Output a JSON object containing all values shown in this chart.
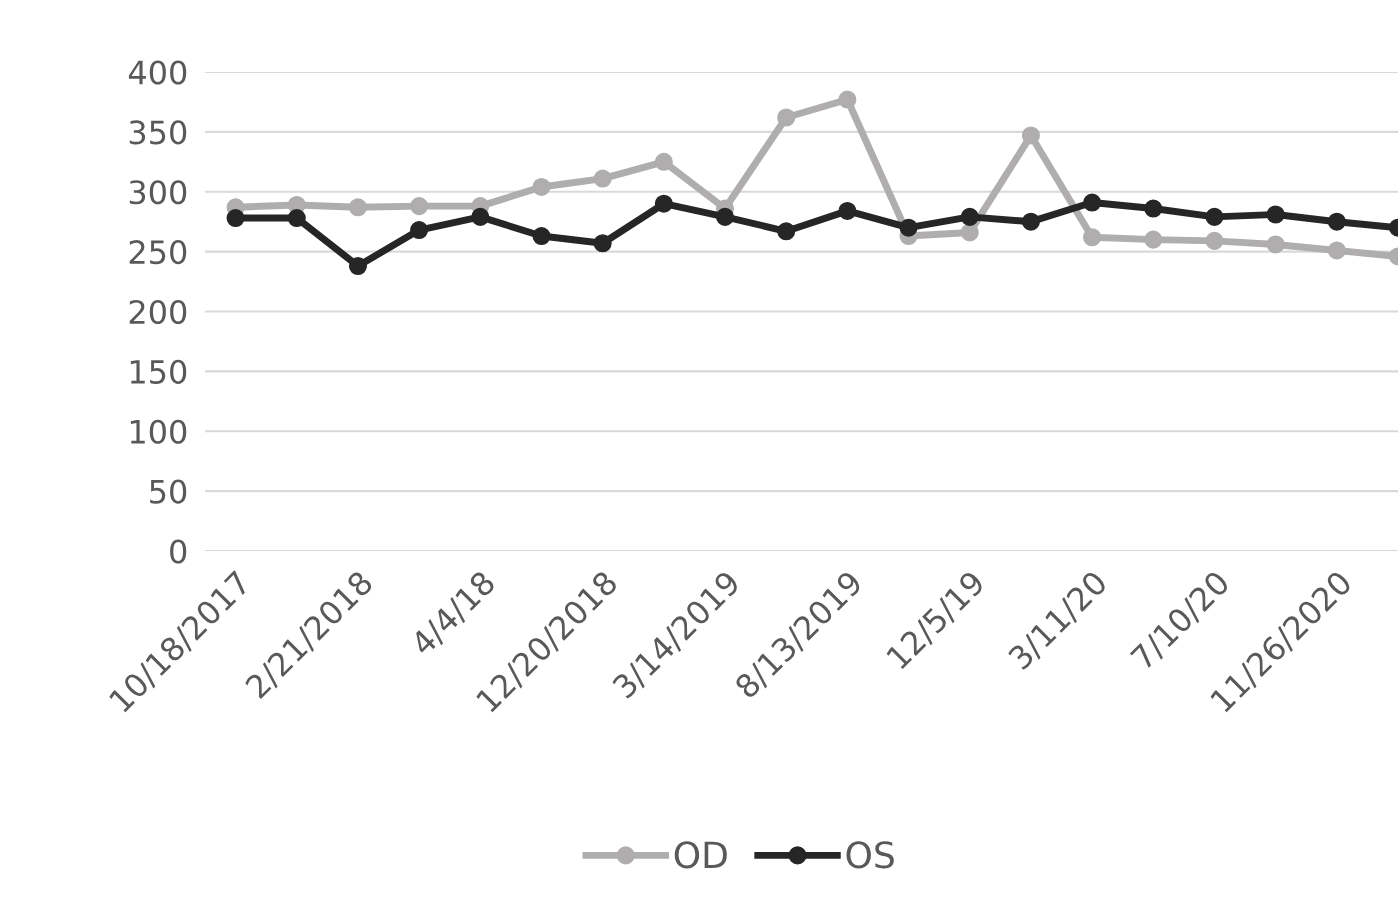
{
  "chart_data": {
    "type": "line",
    "categories": [
      "10/18/2017",
      null,
      "2/21/2018",
      null,
      "4/4/18",
      null,
      "12/20/2018",
      null,
      "3/14/2019",
      null,
      "8/13/2019",
      null,
      "12/5/19",
      null,
      "3/11/20",
      null,
      "7/10/20",
      null,
      "11/26/2020",
      null
    ],
    "series": [
      {
        "name": "OD",
        "color": "#afadad",
        "values": [
          287,
          289,
          287,
          288,
          288,
          304,
          311,
          325,
          286,
          362,
          377,
          263,
          266,
          347,
          262,
          260,
          259,
          256,
          251,
          246
        ]
      },
      {
        "name": "OS",
        "color": "#262626",
        "values": [
          278,
          278,
          238,
          268,
          279,
          263,
          257,
          290,
          279,
          267,
          284,
          270,
          279,
          275,
          291,
          286,
          279,
          281,
          275,
          270
        ]
      }
    ],
    "ylim": [
      0,
      400
    ],
    "yticks": [
      0,
      50,
      100,
      150,
      200,
      250,
      300,
      350,
      400
    ],
    "grid": "y",
    "legend": "bottom",
    "marker": "circle",
    "line_style": "solid"
  }
}
